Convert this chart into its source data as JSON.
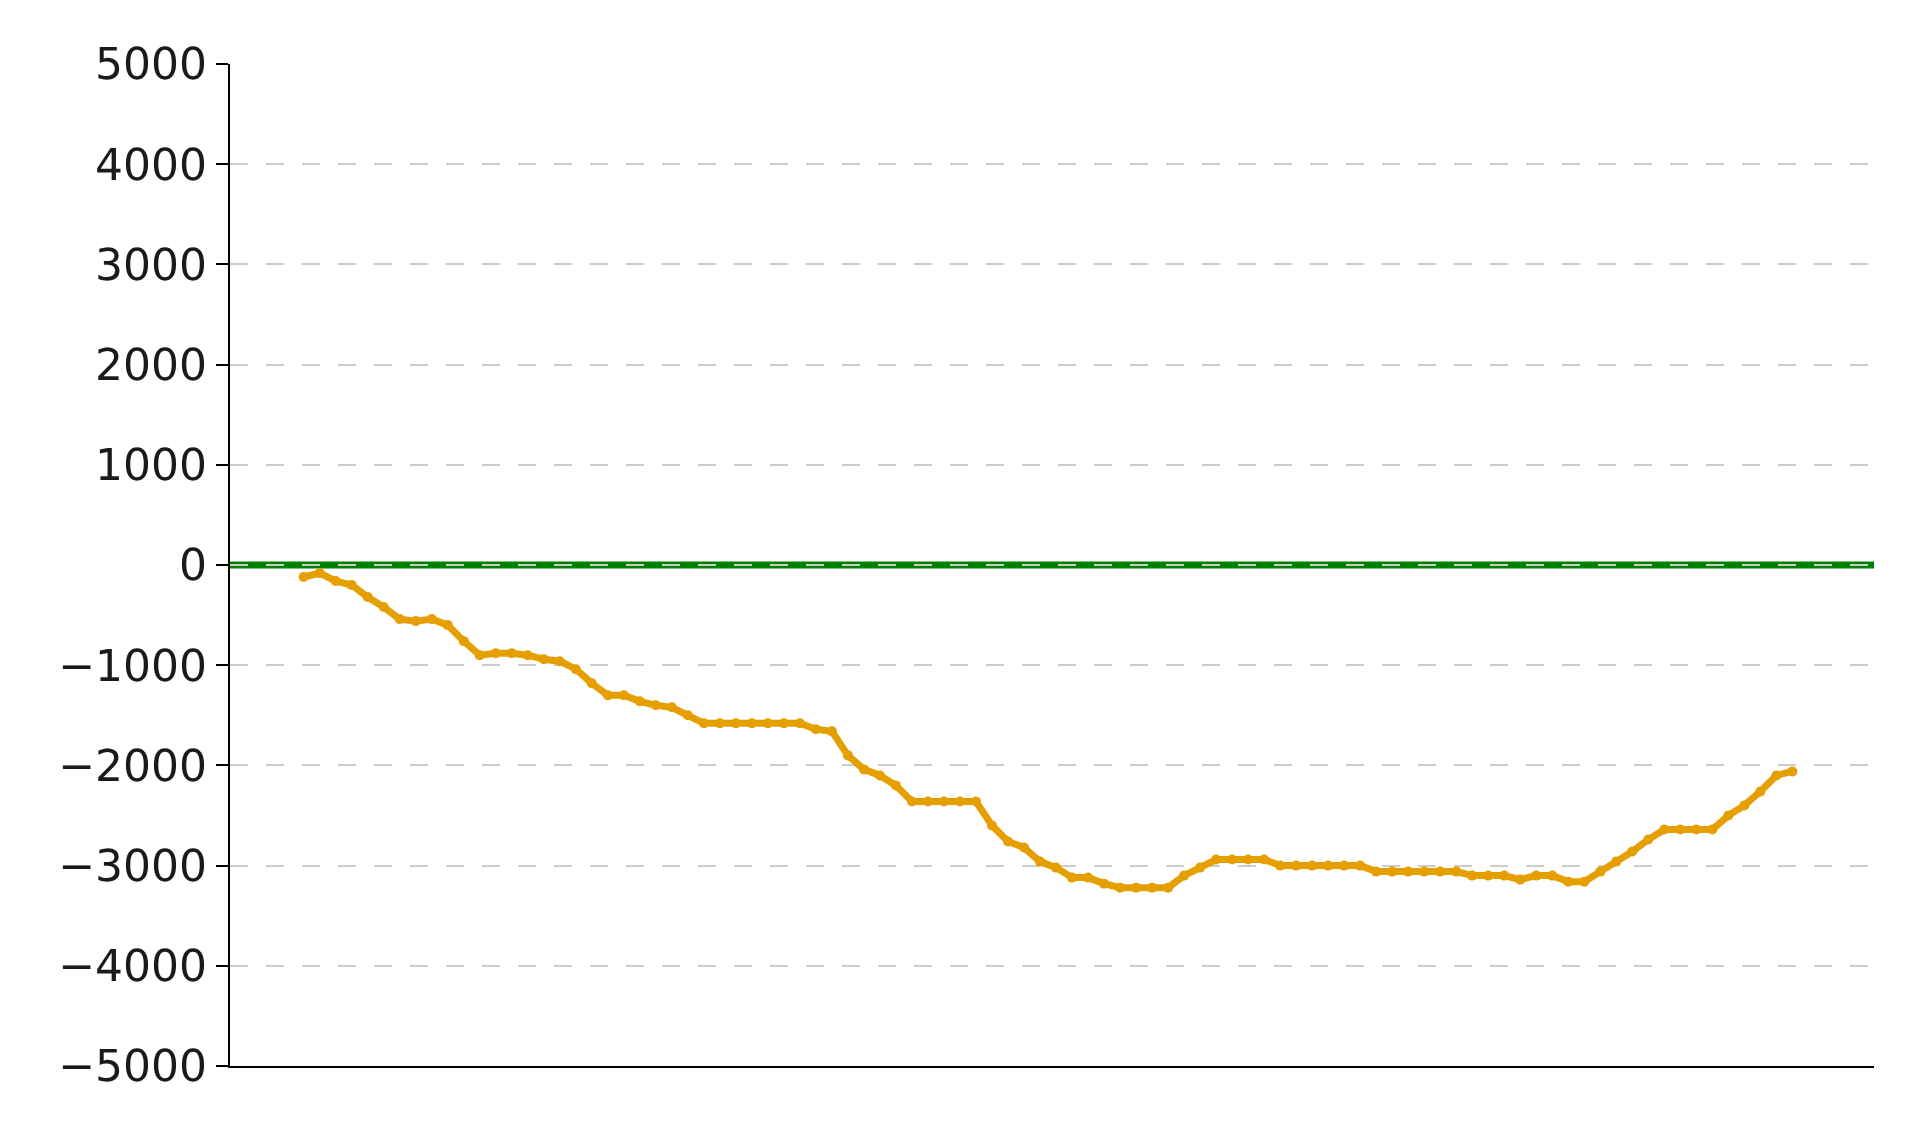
{
  "chart_data": {
    "type": "line",
    "categories": [
      null,
      null,
      null,
      null,
      null,
      null,
      null,
      null,
      null,
      null,
      null,
      null,
      null,
      null,
      null,
      null,
      null,
      null,
      null,
      null,
      null,
      null,
      null,
      null,
      null,
      null,
      null,
      null,
      null,
      null,
      null,
      null,
      null,
      null,
      null,
      null,
      null,
      null,
      null,
      null,
      null,
      null,
      null,
      null,
      null,
      null,
      null,
      null,
      null,
      null,
      null,
      null,
      null,
      null,
      null,
      null,
      null,
      null,
      null,
      null,
      null,
      null,
      null,
      null,
      null,
      null,
      null,
      null,
      null,
      null,
      null,
      null,
      null,
      null,
      null,
      null,
      null,
      null,
      null,
      null,
      null,
      null,
      null,
      null,
      null,
      null,
      null,
      null,
      null,
      null,
      null,
      null,
      null,
      null
    ],
    "series": [
      {
        "color": "#e69f00",
        "values": [
          -120,
          -80,
          -160,
          -200,
          -320,
          -420,
          -540,
          -560,
          -540,
          -600,
          -760,
          -900,
          -880,
          -880,
          -900,
          -940,
          -960,
          -1040,
          -1180,
          -1300,
          -1300,
          -1360,
          -1400,
          -1420,
          -1500,
          -1580,
          -1580,
          -1580,
          -1580,
          -1580,
          -1580,
          -1580,
          -1640,
          -1660,
          -1900,
          -2040,
          -2100,
          -2200,
          -2360,
          -2360,
          -2360,
          -2360,
          -2360,
          -2600,
          -2760,
          -2820,
          -2960,
          -3020,
          -3120,
          -3120,
          -3180,
          -3220,
          -3220,
          -3220,
          -3220,
          -3100,
          -3020,
          -2940,
          -2940,
          -2940,
          -2940,
          -3000,
          -3000,
          -3000,
          -3000,
          -3000,
          -3000,
          -3060,
          -3060,
          -3060,
          -3060,
          -3060,
          -3060,
          -3100,
          -3100,
          -3100,
          -3140,
          -3100,
          -3100,
          -3160,
          -3160,
          -3060,
          -2960,
          -2860,
          -2740,
          -2640,
          -2640,
          -2640,
          -2640,
          -2500,
          -2400,
          -2260,
          -2100,
          -2060
        ]
      }
    ],
    "ylim": [
      -5000,
      5000
    ],
    "yticks": [
      -5000,
      -4000,
      -3000,
      -2000,
      -1000,
      0,
      1000,
      2000,
      3000,
      4000,
      5000
    ],
    "ref_lines": [
      {
        "axis": "y",
        "value": 0,
        "color": "#008000",
        "line_style": "solid"
      }
    ],
    "grid": "y",
    "marker": "circle",
    "line_style": "solid"
  }
}
